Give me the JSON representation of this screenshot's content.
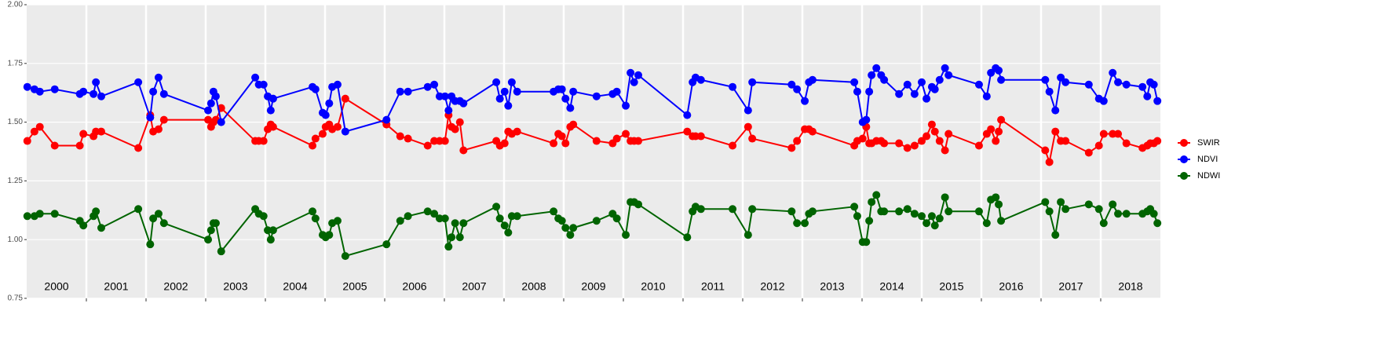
{
  "chart_data": {
    "type": "line",
    "categories": [
      "2000",
      "2001",
      "2002",
      "2003",
      "2004",
      "2005",
      "2006",
      "2007",
      "2008",
      "2009",
      "2010",
      "2011",
      "2012",
      "2013",
      "2014",
      "2015",
      "2016",
      "2017",
      "2018"
    ],
    "x": [
      2000.01,
      2000.13,
      2000.22,
      2000.47,
      2000.89,
      2000.95,
      2001.12,
      2001.16,
      2001.25,
      2001.87,
      2002.07,
      2002.12,
      2002.21,
      2002.3,
      2003.04,
      2003.09,
      2003.13,
      2003.17,
      2003.26,
      2003.83,
      2003.89,
      2003.97,
      2004.04,
      2004.09,
      2004.13,
      2004.79,
      2004.84,
      2004.96,
      2005.01,
      2005.07,
      2005.12,
      2005.21,
      2005.34,
      2006.03,
      2006.26,
      2006.39,
      2006.72,
      2006.83,
      2006.92,
      2007.01,
      2007.07,
      2007.12,
      2007.18,
      2007.26,
      2007.32,
      2007.87,
      2007.93,
      2008.01,
      2008.07,
      2008.13,
      2008.22,
      2008.83,
      2008.91,
      2008.97,
      2009.03,
      2009.11,
      2009.16,
      2009.55,
      2009.82,
      2009.89,
      2010.04,
      2010.12,
      2010.18,
      2010.25,
      2011.07,
      2011.16,
      2011.21,
      2011.3,
      2011.83,
      2012.09,
      2012.16,
      2012.82,
      2012.91,
      2013.04,
      2013.11,
      2013.17,
      2013.87,
      2013.92,
      2014.01,
      2014.07,
      2014.12,
      2014.16,
      2014.24,
      2014.32,
      2014.37,
      2014.62,
      2014.76,
      2014.88,
      2015.0,
      2015.08,
      2015.17,
      2015.22,
      2015.3,
      2015.39,
      2015.45,
      2015.96,
      2016.09,
      2016.16,
      2016.24,
      2016.29,
      2016.33,
      2017.07,
      2017.14,
      2017.24,
      2017.33,
      2017.41,
      2017.8,
      2017.97,
      2018.05,
      2018.2,
      2018.29,
      2018.43,
      2018.7,
      2018.78,
      2018.83,
      2018.89,
      2018.95
    ],
    "series": [
      {
        "name": "SWIR",
        "color": "#ff0000",
        "values": [
          1.42,
          1.46,
          1.48,
          1.4,
          1.4,
          1.45,
          1.44,
          1.46,
          1.46,
          1.39,
          1.53,
          1.46,
          1.47,
          1.51,
          1.51,
          1.48,
          1.5,
          1.51,
          1.56,
          1.42,
          1.42,
          1.42,
          1.47,
          1.49,
          1.48,
          1.4,
          1.43,
          1.45,
          1.48,
          1.49,
          1.47,
          1.48,
          1.6,
          1.49,
          1.44,
          1.43,
          1.4,
          1.42,
          1.42,
          1.42,
          1.53,
          1.48,
          1.47,
          1.5,
          1.38,
          1.42,
          1.4,
          1.41,
          1.46,
          1.45,
          1.46,
          1.41,
          1.45,
          1.44,
          1.41,
          1.48,
          1.49,
          1.42,
          1.41,
          1.43,
          1.45,
          1.42,
          1.42,
          1.42,
          1.46,
          1.44,
          1.44,
          1.44,
          1.4,
          1.48,
          1.43,
          1.39,
          1.42,
          1.47,
          1.47,
          1.46,
          1.4,
          1.42,
          1.43,
          1.48,
          1.41,
          1.41,
          1.42,
          1.42,
          1.41,
          1.41,
          1.39,
          1.4,
          1.42,
          1.44,
          1.49,
          1.46,
          1.42,
          1.38,
          1.45,
          1.4,
          1.45,
          1.47,
          1.42,
          1.46,
          1.51,
          1.38,
          1.33,
          1.46,
          1.42,
          1.42,
          1.37,
          1.4,
          1.45,
          1.45,
          1.45,
          1.41,
          1.39,
          1.4,
          1.41,
          1.41,
          1.42
        ]
      },
      {
        "name": "NDVI",
        "color": "#0000ff",
        "values": [
          1.65,
          1.64,
          1.63,
          1.64,
          1.62,
          1.63,
          1.62,
          1.67,
          1.61,
          1.67,
          1.52,
          1.63,
          1.69,
          1.62,
          1.55,
          1.58,
          1.63,
          1.61,
          1.5,
          1.69,
          1.66,
          1.66,
          1.61,
          1.55,
          1.6,
          1.65,
          1.64,
          1.54,
          1.53,
          1.58,
          1.65,
          1.66,
          1.46,
          1.51,
          1.63,
          1.63,
          1.65,
          1.66,
          1.61,
          1.61,
          1.55,
          1.61,
          1.59,
          1.59,
          1.58,
          1.67,
          1.6,
          1.63,
          1.57,
          1.67,
          1.63,
          1.63,
          1.64,
          1.64,
          1.6,
          1.56,
          1.63,
          1.61,
          1.62,
          1.63,
          1.57,
          1.71,
          1.67,
          1.7,
          1.53,
          1.67,
          1.69,
          1.68,
          1.65,
          1.55,
          1.67,
          1.66,
          1.64,
          1.59,
          1.67,
          1.68,
          1.67,
          1.63,
          1.5,
          1.51,
          1.63,
          1.7,
          1.73,
          1.7,
          1.68,
          1.62,
          1.66,
          1.62,
          1.67,
          1.6,
          1.65,
          1.64,
          1.68,
          1.73,
          1.7,
          1.66,
          1.61,
          1.71,
          1.73,
          1.72,
          1.68,
          1.68,
          1.63,
          1.55,
          1.69,
          1.67,
          1.66,
          1.6,
          1.59,
          1.71,
          1.67,
          1.66,
          1.65,
          1.61,
          1.67,
          1.66,
          1.59
        ]
      },
      {
        "name": "NDWI",
        "color": "#006400",
        "values": [
          1.1,
          1.1,
          1.11,
          1.11,
          1.08,
          1.06,
          1.1,
          1.12,
          1.05,
          1.13,
          0.98,
          1.09,
          1.11,
          1.07,
          1.0,
          1.04,
          1.07,
          1.07,
          0.95,
          1.13,
          1.11,
          1.1,
          1.04,
          1.0,
          1.04,
          1.12,
          1.09,
          1.02,
          1.01,
          1.02,
          1.07,
          1.08,
          0.93,
          0.98,
          1.08,
          1.1,
          1.12,
          1.11,
          1.09,
          1.09,
          0.97,
          1.01,
          1.07,
          1.01,
          1.07,
          1.14,
          1.09,
          1.06,
          1.03,
          1.1,
          1.1,
          1.12,
          1.09,
          1.08,
          1.05,
          1.02,
          1.05,
          1.08,
          1.11,
          1.09,
          1.02,
          1.16,
          1.16,
          1.15,
          1.01,
          1.12,
          1.14,
          1.13,
          1.13,
          1.02,
          1.13,
          1.12,
          1.07,
          1.07,
          1.11,
          1.12,
          1.14,
          1.1,
          0.99,
          0.99,
          1.08,
          1.16,
          1.19,
          1.12,
          1.12,
          1.12,
          1.13,
          1.11,
          1.1,
          1.07,
          1.1,
          1.06,
          1.09,
          1.18,
          1.12,
          1.12,
          1.07,
          1.17,
          1.18,
          1.15,
          1.08,
          1.16,
          1.12,
          1.02,
          1.16,
          1.13,
          1.15,
          1.13,
          1.07,
          1.15,
          1.11,
          1.11,
          1.11,
          1.12,
          1.13,
          1.11,
          1.07
        ]
      }
    ],
    "xlim": [
      2000,
      2019
    ],
    "xticks": [
      2001,
      2002,
      2003,
      2004,
      2005,
      2006,
      2007,
      2008,
      2009,
      2010,
      2011,
      2012,
      2013,
      2014,
      2015,
      2016,
      2017,
      2018
    ],
    "ylim": [
      0.75,
      2.0
    ],
    "yticks": [
      0.75,
      {
        "value": 1.0,
        "label": "1.00"
      },
      1.25,
      {
        "value": 1.5,
        "label": "1.50"
      },
      1.75,
      {
        "value": 2.0,
        "label": "2.00"
      }
    ],
    "grid": true,
    "legend": "right"
  }
}
